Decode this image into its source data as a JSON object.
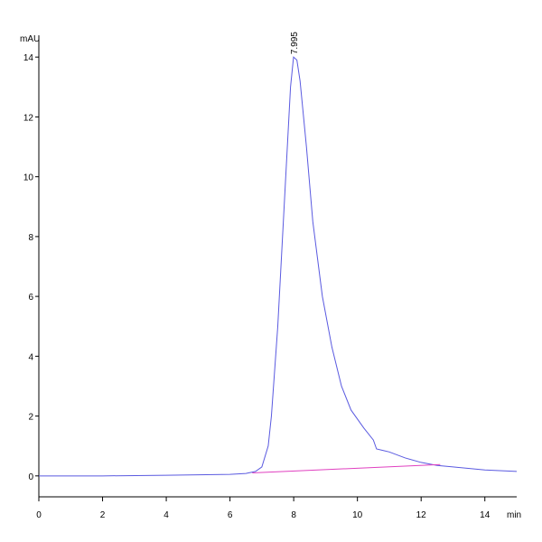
{
  "chart_data": {
    "type": "line",
    "ylabel": "mAU",
    "xlabel": "min",
    "xlim": [
      0,
      15
    ],
    "ylim": [
      -0.7,
      14.7
    ],
    "xticks": [
      0,
      2,
      4,
      6,
      8,
      10,
      12,
      14
    ],
    "yticks": [
      0,
      2,
      4,
      6,
      8,
      10,
      12,
      14
    ],
    "series": [
      {
        "color": "#5a5ae0",
        "x": [
          0,
          2,
          4,
          6,
          6.5,
          6.8,
          7.0,
          7.2,
          7.3,
          7.5,
          7.7,
          7.9,
          7.995,
          8.1,
          8.2,
          8.4,
          8.6,
          8.9,
          9.2,
          9.5,
          9.8,
          10.2,
          10.5,
          10.6,
          10.8,
          11,
          11.5,
          12,
          12.5,
          13,
          14,
          15
        ],
        "values": [
          0.0,
          0.0,
          0.02,
          0.05,
          0.08,
          0.15,
          0.3,
          1.0,
          2.0,
          5.0,
          9.0,
          13.0,
          14.0,
          13.9,
          13.2,
          11.0,
          8.5,
          6.0,
          4.3,
          3.0,
          2.2,
          1.6,
          1.2,
          0.9,
          0.85,
          0.8,
          0.6,
          0.45,
          0.35,
          0.3,
          0.2,
          0.15
        ]
      },
      {
        "color": "#e040c0",
        "x": [
          6.7,
          12.6
        ],
        "values": [
          0.1,
          0.38
        ]
      }
    ],
    "peak_labels": [
      {
        "x": 7.995,
        "y": 14.0
      }
    ]
  }
}
